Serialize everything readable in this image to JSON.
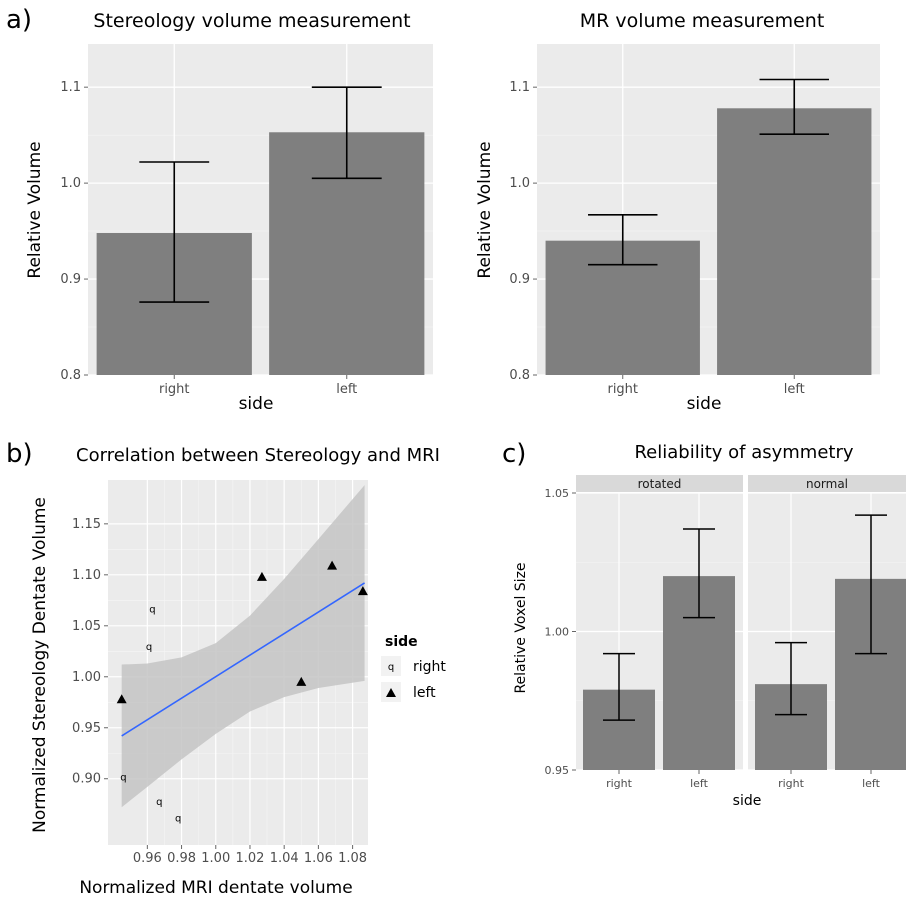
{
  "panel_labels": {
    "a": "a)",
    "b": "b)",
    "c": "c)"
  },
  "chart_data": [
    {
      "id": "stereology",
      "type": "bar",
      "title": "Stereology volume measurement",
      "xlabel": "side",
      "ylabel": "Relative Volume",
      "categories": [
        "right",
        "left"
      ],
      "values": [
        0.948,
        1.053
      ],
      "error_low": [
        0.876,
        1.005
      ],
      "error_high": [
        1.022,
        1.1
      ],
      "ylim": [
        0.8,
        1.145
      ],
      "yticks": [
        0.8,
        0.9,
        1.0,
        1.1
      ],
      "ytick_labels": [
        "0.8",
        "0.9",
        "1.0",
        "1.1"
      ],
      "grid": true
    },
    {
      "id": "mr",
      "type": "bar",
      "title": "MR volume measurement",
      "xlabel": "side",
      "ylabel": "Relative Volume",
      "categories": [
        "right",
        "left"
      ],
      "values": [
        0.94,
        1.078
      ],
      "error_low": [
        0.915,
        1.051
      ],
      "error_high": [
        0.967,
        1.108
      ],
      "ylim": [
        0.8,
        1.145
      ],
      "yticks": [
        0.8,
        0.9,
        1.0,
        1.1
      ],
      "ytick_labels": [
        "0.8",
        "0.9",
        "1.0",
        "1.1"
      ],
      "grid": true
    },
    {
      "id": "correlation",
      "type": "scatter",
      "title": "Correlation between Stereology and MRI",
      "xlabel": "Normalized MRI dentate volume",
      "ylabel": "Normalized Stereology Dentate Volume",
      "xlim": [
        0.937,
        1.089
      ],
      "ylim": [
        0.835,
        1.193
      ],
      "xticks": [
        0.96,
        0.98,
        1.0,
        1.02,
        1.04,
        1.06,
        1.08
      ],
      "xtick_labels": [
        "0.96",
        "0.98",
        "1.00",
        "1.02",
        "1.04",
        "1.06",
        "1.08"
      ],
      "yticks": [
        0.9,
        0.95,
        1.0,
        1.05,
        1.1,
        1.15
      ],
      "ytick_labels": [
        "0.90",
        "0.95",
        "1.00",
        "1.05",
        "1.10",
        "1.15"
      ],
      "legend": {
        "title": "side",
        "position": "right",
        "entries": [
          "right",
          "left"
        ]
      },
      "right_marker": "q",
      "series": [
        {
          "name": "right",
          "marker": "q",
          "points": [
            [
              0.963,
              1.066
            ],
            [
              0.961,
              1.029
            ],
            [
              0.946,
              0.901
            ],
            [
              0.967,
              0.877
            ],
            [
              0.978,
              0.861
            ]
          ]
        },
        {
          "name": "left",
          "marker": "triangle",
          "points": [
            [
              0.945,
              0.978
            ],
            [
              1.027,
              1.098
            ],
            [
              1.05,
              0.995
            ],
            [
              1.068,
              1.109
            ],
            [
              1.086,
              1.084
            ]
          ]
        }
      ],
      "fit_line": {
        "x": [
          0.945,
          1.087
        ],
        "y": [
          0.942,
          1.092
        ],
        "color": "#3366ff"
      },
      "confidence_band": {
        "x": [
          0.945,
          0.96,
          0.98,
          1.0,
          1.02,
          1.04,
          1.06,
          1.087
        ],
        "upper": [
          1.012,
          1.013,
          1.019,
          1.033,
          1.06,
          1.096,
          1.135,
          1.188
        ],
        "lower": [
          0.872,
          0.892,
          0.919,
          0.944,
          0.966,
          0.98,
          0.989,
          0.996
        ]
      },
      "grid": true
    },
    {
      "id": "reliability",
      "type": "bar",
      "title": "Reliability of asymmetry",
      "xlabel": "side",
      "ylabel": "Relative Voxel Size",
      "facets": [
        {
          "label": "rotated",
          "categories": [
            "right",
            "left"
          ],
          "values": [
            0.979,
            1.02
          ],
          "error_low": [
            0.968,
            1.005
          ],
          "error_high": [
            0.992,
            1.037
          ]
        },
        {
          "label": "normal",
          "categories": [
            "right",
            "left"
          ],
          "values": [
            0.981,
            1.019
          ],
          "error_low": [
            0.97,
            0.992
          ],
          "error_high": [
            0.996,
            1.042
          ]
        }
      ],
      "ylim": [
        0.95,
        1.05
      ],
      "yticks": [
        0.95,
        1.0,
        1.05
      ],
      "ytick_labels": [
        "0.95",
        "1.00",
        "1.05"
      ],
      "grid": true
    }
  ],
  "colors": {
    "panel_bg": "#ebebeb",
    "grid": "#ffffff",
    "bar": "#7f7f7f",
    "band": "#c4c4c4",
    "strip": "#d9d9d9"
  }
}
